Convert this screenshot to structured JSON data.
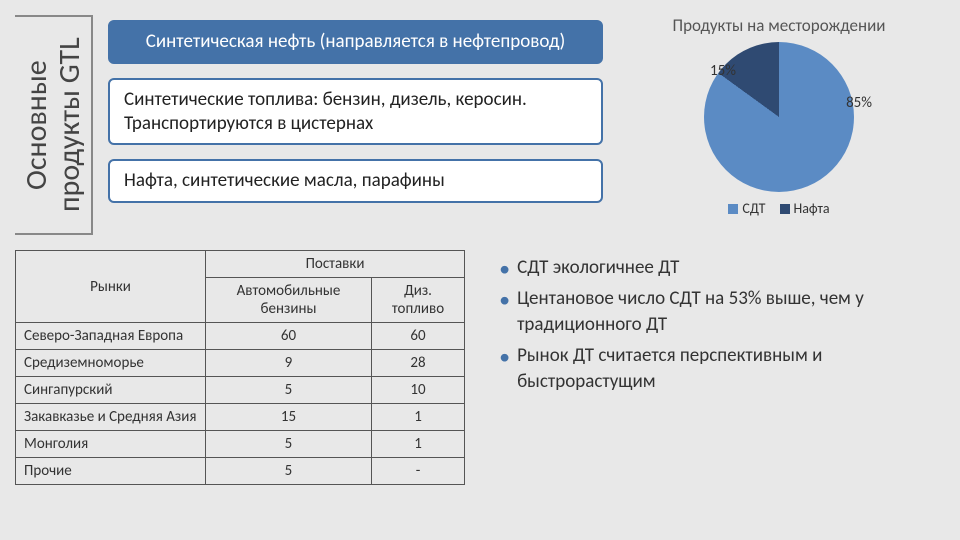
{
  "colors": {
    "accent": "#4472a8",
    "pie_main": "#5b8bc4",
    "pie_small": "#2f4a72"
  },
  "vertical_title": "Основные продукты GTL",
  "bars": [
    {
      "text": "Синтетическая нефть (направляется в нефтепровод)",
      "filled": true
    },
    {
      "text": "Синтетические топлива: бензин, дизель, керосин. Транспортируются в цистернах",
      "filled": false
    },
    {
      "text": "Нафта, синтетические масла, парафины",
      "filled": false
    }
  ],
  "pie": {
    "title": "Продукты на месторождении",
    "slices": [
      {
        "label": "СДТ",
        "value": 85,
        "color": "#5b8bc4",
        "pct_label": "85%"
      },
      {
        "label": "Нафта",
        "value": 15,
        "color": "#2f4a72",
        "pct_label": "15%"
      }
    ]
  },
  "table": {
    "header_markets": "Рынки",
    "header_supplies": "Поставки",
    "columns": [
      "Автомобильные бензины",
      "Диз. топливо"
    ],
    "rows": [
      {
        "label": "Северо-Западная Европа",
        "cells": [
          "60",
          "60"
        ]
      },
      {
        "label": "Средиземноморье",
        "cells": [
          "9",
          "28"
        ]
      },
      {
        "label": "Сингапурский",
        "cells": [
          "5",
          "10"
        ]
      },
      {
        "label": "Закавказье и Средняя Азия",
        "cells": [
          "15",
          "1"
        ]
      },
      {
        "label": "Монголия",
        "cells": [
          "5",
          "1"
        ]
      },
      {
        "label": "Прочие",
        "cells": [
          "5",
          "-"
        ]
      }
    ]
  },
  "bullets": [
    "СДТ экологичнее ДТ",
    "Центановое число СДТ на 53% выше, чем у традиционного ДТ",
    "Рынок ДТ считается перспективным и быстрорастущим"
  ]
}
